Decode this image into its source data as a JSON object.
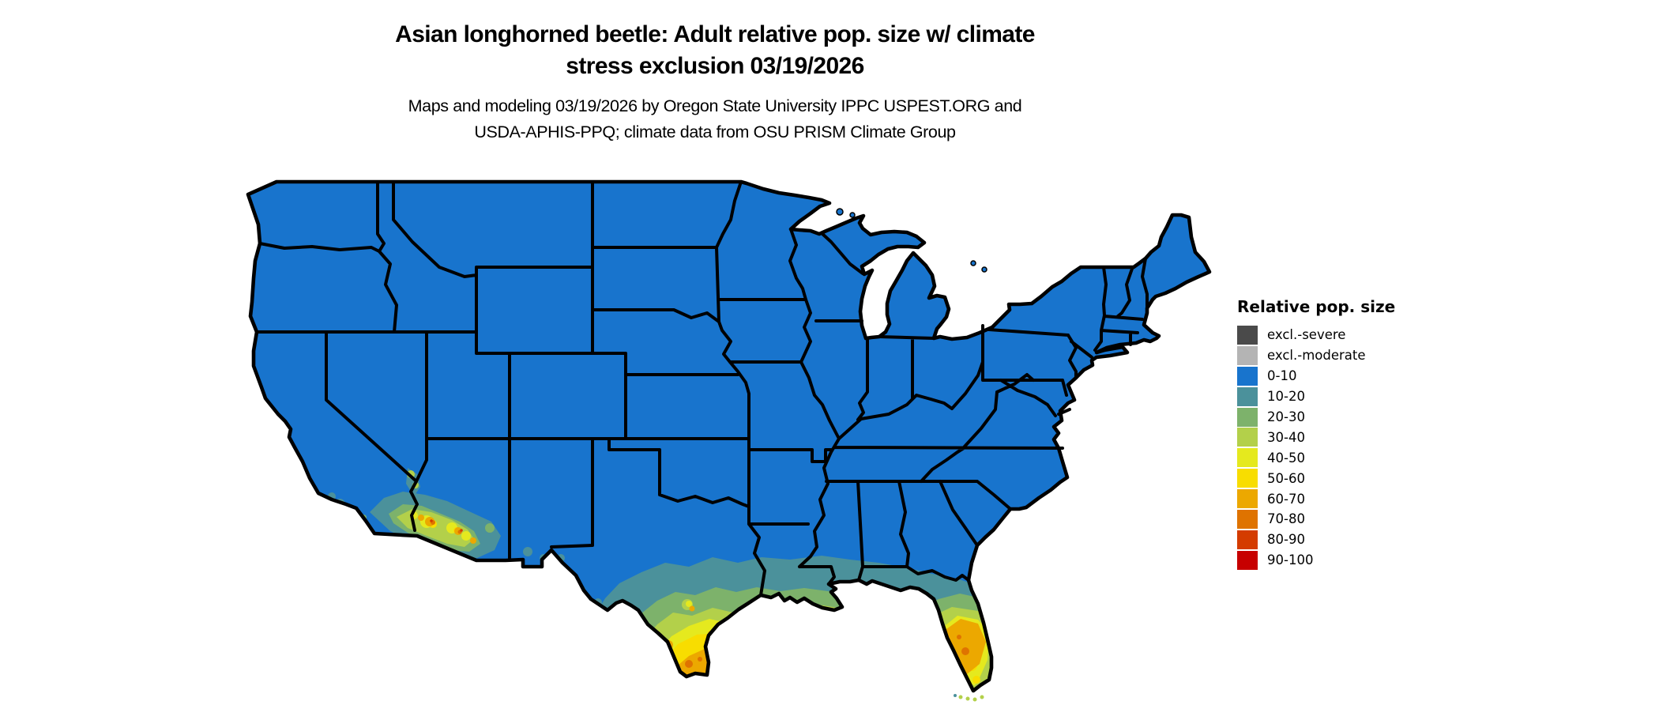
{
  "figure": {
    "title_line1": "Asian longhorned beetle: Adult relative pop. size w/ climate",
    "title_line2": "stress exclusion 03/19/2026",
    "subtitle_line1": "Maps and modeling 03/19/2026 by Oregon State University IPPC USPEST.ORG and",
    "subtitle_line2": "USDA-APHIS-PPQ; climate data from OSU PRISM Climate Group"
  },
  "legend": {
    "title": "Relative pop. size",
    "items": [
      {
        "label": "excl.-severe",
        "color": "#4a4a4a"
      },
      {
        "label": "excl.-moderate",
        "color": "#b4b4b4"
      },
      {
        "label": "0-10",
        "color": "#1874cd"
      },
      {
        "label": "10-20",
        "color": "#4b919b"
      },
      {
        "label": "20-30",
        "color": "#7db26b"
      },
      {
        "label": "30-40",
        "color": "#b3d04a"
      },
      {
        "label": "40-50",
        "color": "#e5e91e"
      },
      {
        "label": "50-60",
        "color": "#f8dd00"
      },
      {
        "label": "60-70",
        "color": "#eca800"
      },
      {
        "label": "70-80",
        "color": "#df7300"
      },
      {
        "label": "80-90",
        "color": "#d43c00"
      },
      {
        "label": "90-100",
        "color": "#c70000"
      }
    ]
  },
  "map": {
    "region": "Contiguous United States",
    "dominant_class": "0-10",
    "hotspots": [
      {
        "area": "southern Texas / Rio Grande Valley",
        "classes": "20-30 up to 70-80"
      },
      {
        "area": "central and southern Florida",
        "classes": "20-30 up to 70-80"
      },
      {
        "area": "southern Arizona / southeast California",
        "classes": "10-20 up to 80-90"
      },
      {
        "area": "Gulf Coast: Louisiana, Mississippi, Alabama, Florida panhandle",
        "classes": "10-20 to 30-40"
      }
    ]
  }
}
